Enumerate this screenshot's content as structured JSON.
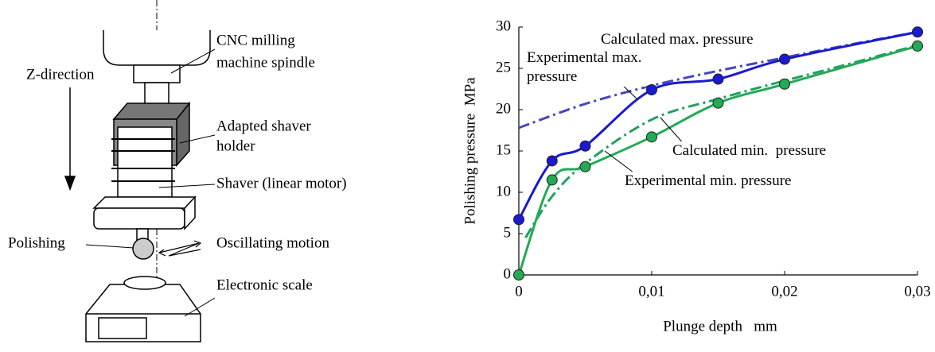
{
  "diagram": {
    "spindle": [
      "CNC milling",
      "machine spindle"
    ],
    "z_direction": "Z-direction",
    "holder": [
      "Adapted shaver",
      "holder"
    ],
    "shaver": "Shaver (linear motor)",
    "polishing": "Polishing",
    "oscillating": "Oscillating motion",
    "scale": "Electronic scale"
  },
  "chart_data": {
    "type": "line",
    "x_label": "Plunge depth   mm",
    "y_label": "Polishing pressure  MPa",
    "xlim": [
      0,
      0.03
    ],
    "xticks": [
      0,
      {
        "value": 0.01,
        "label": "0,01"
      },
      {
        "value": 0.02,
        "label": "0,02"
      },
      {
        "value": 0.03,
        "label": "0,03"
      }
    ],
    "ylim": [
      0,
      30
    ],
    "yticks": [
      0,
      5,
      10,
      15,
      20,
      25,
      30
    ],
    "series": [
      {
        "name": "Calculated max. pressure",
        "color": "#4646c0",
        "style": "dashdot",
        "markers": false,
        "x": [
          0,
          0.005,
          0.01,
          0.015,
          0.02,
          0.025,
          0.03
        ],
        "values": [
          17.8,
          20.7,
          22.9,
          24.7,
          26.3,
          27.9,
          29.4
        ]
      },
      {
        "name": "Calculated min.  pressure",
        "color": "#22a060",
        "style": "dashdot",
        "markers": false,
        "x": [
          0.0005,
          0.0025,
          0.005,
          0.01,
          0.015,
          0.02,
          0.025,
          0.03
        ],
        "values": [
          4.5,
          9.5,
          13.5,
          18.8,
          21.3,
          23.5,
          25.6,
          27.8
        ]
      },
      {
        "name": "Experimental max. pressure",
        "color": "#1a1ad0",
        "style": "solid",
        "markers": true,
        "x": [
          0,
          0.0025,
          0.005,
          0.01,
          0.015,
          0.02,
          0.03
        ],
        "values": [
          6.7,
          13.8,
          15.6,
          22.4,
          23.7,
          26.1,
          29.4
        ]
      },
      {
        "name": "Experimental min. pressure",
        "color": "#22aa55",
        "style": "solid",
        "markers": true,
        "x": [
          0,
          0.0025,
          0.005,
          0.01,
          0.015,
          0.02,
          0.03
        ],
        "values": [
          0,
          11.5,
          13.1,
          16.7,
          20.8,
          23.1,
          27.7
        ]
      }
    ]
  }
}
